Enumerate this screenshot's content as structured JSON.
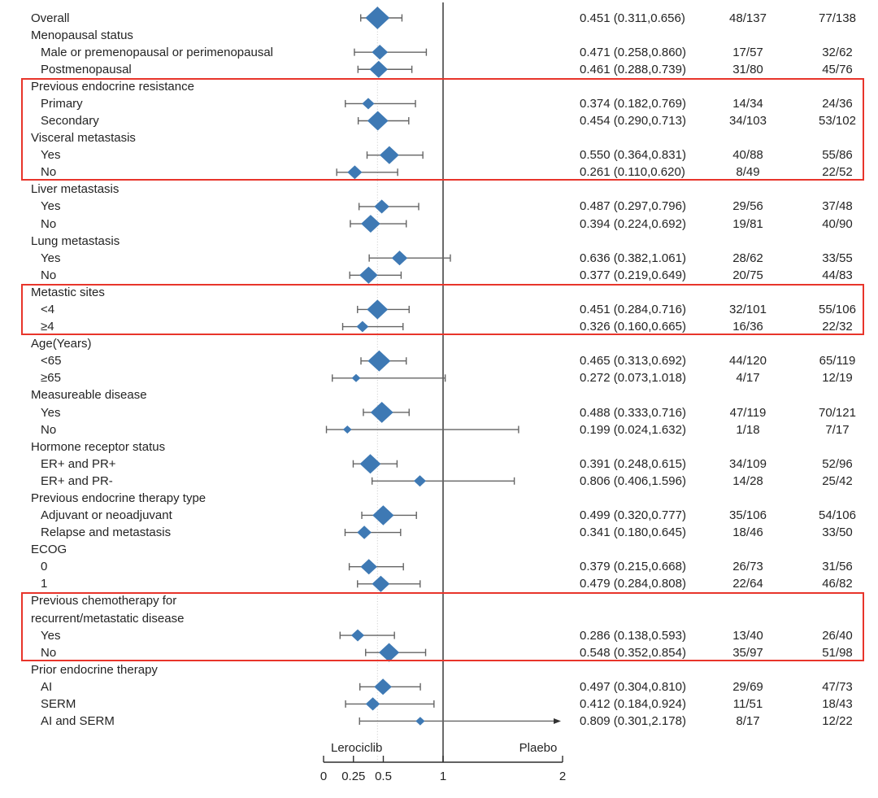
{
  "chart_data": {
    "type": "forest",
    "axis": {
      "min": 0,
      "max": 2,
      "ticks": [
        0,
        0.25,
        0.5,
        1,
        2
      ],
      "tick_labels": [
        "0",
        "0.25",
        "0.5",
        "1",
        "2"
      ],
      "ref_value": 1,
      "dotted_value": 0.451,
      "left_arm_label": "Lerociclib",
      "right_arm_label": "Plaebo"
    },
    "rows": [
      {
        "label": "Overall",
        "indent": 0,
        "est": 0.451,
        "lo": 0.311,
        "hi": 0.656,
        "hr": "0.451 (0.311,0.656)",
        "l": "48/137",
        "p": "77/138"
      },
      {
        "label": "Menopausal status",
        "indent": 0
      },
      {
        "label": "Male or premenopausal or perimenopausal",
        "indent": 1,
        "est": 0.471,
        "lo": 0.258,
        "hi": 0.86,
        "hr": "0.471 (0.258,0.860)",
        "l": "17/57",
        "p": "32/62"
      },
      {
        "label": "Postmenopausal",
        "indent": 1,
        "est": 0.461,
        "lo": 0.288,
        "hi": 0.739,
        "hr": "0.461 (0.288,0.739)",
        "l": "31/80",
        "p": "45/76"
      },
      {
        "label": "Previous endocrine resistance",
        "indent": 0
      },
      {
        "label": "Primary",
        "indent": 1,
        "est": 0.374,
        "lo": 0.182,
        "hi": 0.769,
        "hr": "0.374 (0.182,0.769)",
        "l": "14/34",
        "p": "24/36"
      },
      {
        "label": "Secondary",
        "indent": 1,
        "est": 0.454,
        "lo": 0.29,
        "hi": 0.713,
        "hr": "0.454 (0.290,0.713)",
        "l": "34/103",
        "p": "53/102"
      },
      {
        "label": "Visceral metastasis",
        "indent": 0
      },
      {
        "label": "Yes",
        "indent": 1,
        "est": 0.55,
        "lo": 0.364,
        "hi": 0.831,
        "hr": "0.550 (0.364,0.831)",
        "l": "40/88",
        "p": "55/86"
      },
      {
        "label": "No",
        "indent": 1,
        "est": 0.261,
        "lo": 0.11,
        "hi": 0.62,
        "hr": "0.261 (0.110,0.620)",
        "l": "8/49",
        "p": "22/52"
      },
      {
        "label": "Liver metastasis",
        "indent": 0
      },
      {
        "label": "Yes",
        "indent": 1,
        "est": 0.487,
        "lo": 0.297,
        "hi": 0.796,
        "hr": "0.487 (0.297,0.796)",
        "l": "29/56",
        "p": "37/48"
      },
      {
        "label": "No",
        "indent": 1,
        "est": 0.394,
        "lo": 0.224,
        "hi": 0.692,
        "hr": "0.394 (0.224,0.692)",
        "l": "19/81",
        "p": "40/90"
      },
      {
        "label": "Lung metastasis",
        "indent": 0
      },
      {
        "label": "Yes",
        "indent": 1,
        "est": 0.636,
        "lo": 0.382,
        "hi": 1.061,
        "hr": "0.636 (0.382,1.061)",
        "l": "28/62",
        "p": "33/55"
      },
      {
        "label": "No",
        "indent": 1,
        "est": 0.377,
        "lo": 0.219,
        "hi": 0.649,
        "hr": "0.377 (0.219,0.649)",
        "l": "20/75",
        "p": "44/83"
      },
      {
        "label": "Metastic sites",
        "indent": 0
      },
      {
        "label": "<4",
        "indent": 1,
        "est": 0.451,
        "lo": 0.284,
        "hi": 0.716,
        "hr": "0.451 (0.284,0.716)",
        "l": "32/101",
        "p": "55/106"
      },
      {
        "label": "≥4",
        "indent": 1,
        "est": 0.326,
        "lo": 0.16,
        "hi": 0.665,
        "hr": "0.326 (0.160,0.665)",
        "l": "16/36",
        "p": "22/32"
      },
      {
        "label": "Age(Years)",
        "indent": 0
      },
      {
        "label": "<65",
        "indent": 1,
        "est": 0.465,
        "lo": 0.313,
        "hi": 0.692,
        "hr": "0.465 (0.313,0.692)",
        "l": "44/120",
        "p": "65/119"
      },
      {
        "label": "≥65",
        "indent": 1,
        "est": 0.272,
        "lo": 0.073,
        "hi": 1.018,
        "hr": "0.272 (0.073,1.018)",
        "l": "4/17",
        "p": "12/19"
      },
      {
        "label": "Measureable disease",
        "indent": 0
      },
      {
        "label": "Yes",
        "indent": 1,
        "est": 0.488,
        "lo": 0.333,
        "hi": 0.716,
        "hr": "0.488 (0.333,0.716)",
        "l": "47/119",
        "p": "70/121"
      },
      {
        "label": "No",
        "indent": 1,
        "est": 0.199,
        "lo": 0.024,
        "hi": 1.632,
        "hr": "0.199 (0.024,1.632)",
        "l": "1/18",
        "p": "7/17"
      },
      {
        "label": "Hormone receptor status",
        "indent": 0
      },
      {
        "label": "ER+ and PR+",
        "indent": 1,
        "est": 0.391,
        "lo": 0.248,
        "hi": 0.615,
        "hr": "0.391 (0.248,0.615)",
        "l": "34/109",
        "p": "52/96"
      },
      {
        "label": "ER+ and PR-",
        "indent": 1,
        "est": 0.806,
        "lo": 0.406,
        "hi": 1.596,
        "hr": "0.806 (0.406,1.596)",
        "l": "14/28",
        "p": "25/42"
      },
      {
        "label": "Previous endocrine therapy type",
        "indent": 0
      },
      {
        "label": "Adjuvant or neoadjuvant",
        "indent": 1,
        "est": 0.499,
        "lo": 0.32,
        "hi": 0.777,
        "hr": "0.499 (0.320,0.777)",
        "l": "35/106",
        "p": "54/106"
      },
      {
        "label": "Relapse and metastasis",
        "indent": 1,
        "est": 0.341,
        "lo": 0.18,
        "hi": 0.645,
        "hr": "0.341 (0.180,0.645)",
        "l": "18/46",
        "p": "33/50"
      },
      {
        "label": "ECOG",
        "indent": 0
      },
      {
        "label": "0",
        "indent": 1,
        "est": 0.379,
        "lo": 0.215,
        "hi": 0.668,
        "hr": "0.379 (0.215,0.668)",
        "l": "26/73",
        "p": "31/56"
      },
      {
        "label": "1",
        "indent": 1,
        "est": 0.479,
        "lo": 0.284,
        "hi": 0.808,
        "hr": "0.479 (0.284,0.808)",
        "l": "22/64",
        "p": "46/82"
      },
      {
        "label": "Previous chemotherapy for",
        "indent": 0
      },
      {
        "label": "recurrent/metastatic disease",
        "indent": 0
      },
      {
        "label": "Yes",
        "indent": 1,
        "est": 0.286,
        "lo": 0.138,
        "hi": 0.593,
        "hr": "0.286 (0.138,0.593)",
        "l": "13/40",
        "p": "26/40"
      },
      {
        "label": "No",
        "indent": 1,
        "est": 0.548,
        "lo": 0.352,
        "hi": 0.854,
        "hr": "0.548 (0.352,0.854)",
        "l": "35/97",
        "p": "51/98"
      },
      {
        "label": "Prior endocrine therapy",
        "indent": 0
      },
      {
        "label": "AI",
        "indent": 1,
        "est": 0.497,
        "lo": 0.304,
        "hi": 0.81,
        "hr": "0.497 (0.304,0.810)",
        "l": "29/69",
        "p": "47/73"
      },
      {
        "label": "SERM",
        "indent": 1,
        "est": 0.412,
        "lo": 0.184,
        "hi": 0.924,
        "hr": "0.412 (0.184,0.924)",
        "l": "11/51",
        "p": "18/43"
      },
      {
        "label": "AI and SERM",
        "indent": 1,
        "est": 0.809,
        "lo": 0.301,
        "hi": 2.178,
        "hr": "0.809 (0.301,2.178)",
        "l": "8/17",
        "p": "12/22"
      }
    ],
    "highlight_boxes": [
      {
        "first_row": 5,
        "last_row": 10
      },
      {
        "first_row": 17,
        "last_row": 19
      },
      {
        "first_row": 35,
        "last_row": 38
      }
    ],
    "colors": {
      "diamond": "#3e79b4",
      "ci_line": "#646464",
      "ref_line": "#5a5a5a",
      "dotted_line": "#c6c6c6",
      "highlight": "#e8352b",
      "text": "#242424",
      "axis": "#2f2f2f"
    }
  }
}
